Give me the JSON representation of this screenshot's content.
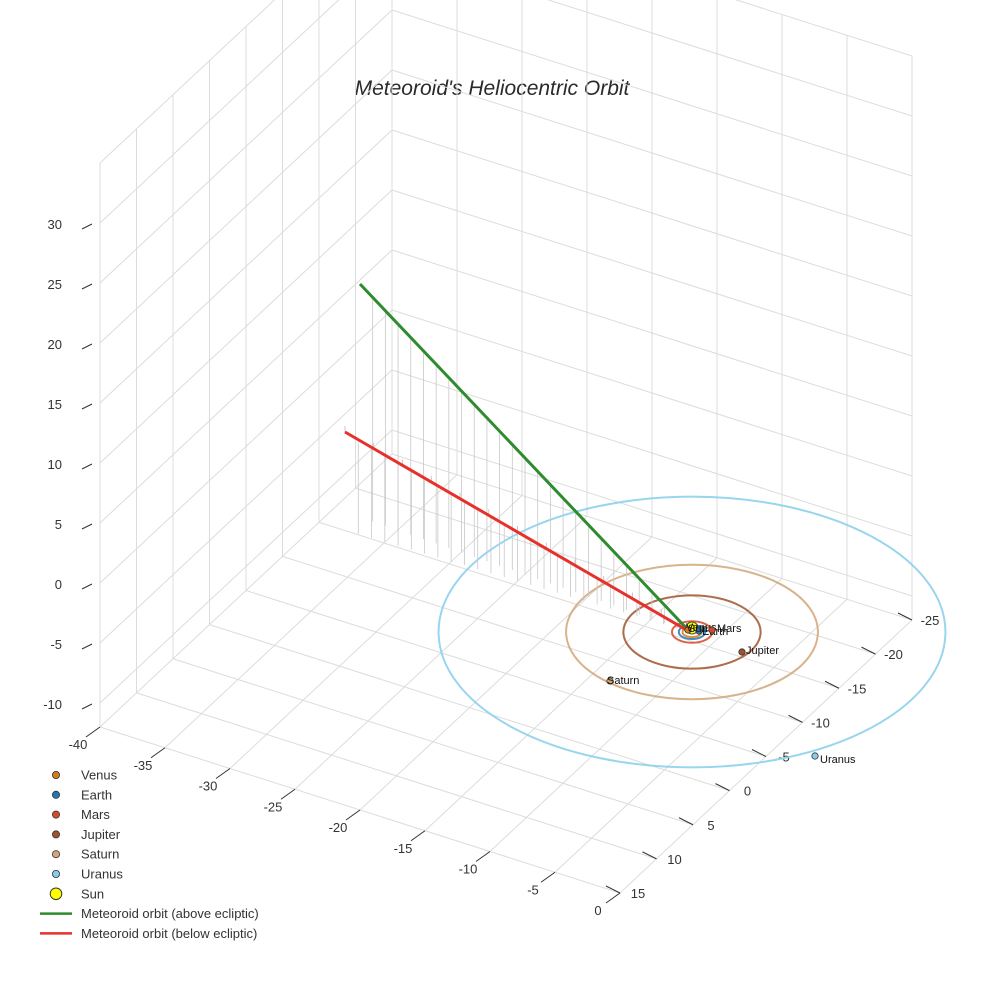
{
  "chart_data": {
    "type": "3d-line",
    "title": "Meteoroid's Heliocentric Orbit",
    "axes": {
      "x": {
        "ticks": [
          -40,
          -35,
          -30,
          -25,
          -20,
          -15,
          -10,
          -5,
          0
        ]
      },
      "y": {
        "ticks": [
          -25,
          -20,
          -15,
          -10,
          -5,
          0,
          5,
          10,
          15
        ]
      },
      "z": {
        "ticks": [
          30,
          25,
          20,
          15,
          10,
          5,
          0,
          -5,
          -10
        ]
      }
    },
    "planets": [
      {
        "name": "Venus",
        "label": "Venus",
        "color": "#d67a1f",
        "orbit_radius": 0.72
      },
      {
        "name": "Earth",
        "label": "Earth",
        "color": "#1f77b4",
        "orbit_radius": 1.0
      },
      {
        "name": "Mars",
        "label": "Mars",
        "color": "#d44a2a",
        "orbit_radius": 1.52
      },
      {
        "name": "Jupiter",
        "label": "Jupiter",
        "color": "#a0522d",
        "orbit_radius": 5.2
      },
      {
        "name": "Saturn",
        "label": "Saturn",
        "color": "#d2a679",
        "orbit_radius": 9.54
      },
      {
        "name": "Uranus",
        "label": "Uranus",
        "color": "#87ceeb",
        "orbit_radius": 19.2
      }
    ],
    "sun": {
      "label": "Sun",
      "color": "#ffff00"
    },
    "series": [
      {
        "name": "Meteoroid orbit (above ecliptic)",
        "color": "#2e8b2e",
        "start": [
          -38,
          -12,
          30
        ],
        "end": [
          0,
          0,
          0
        ]
      },
      {
        "name": "Meteoroid orbit (below ecliptic)",
        "color": "#e8302a",
        "start": [
          -40,
          -8,
          18
        ],
        "end": [
          0,
          0,
          0
        ]
      }
    ],
    "legend": {
      "position": "bottom-left",
      "items": [
        {
          "label": "Venus",
          "kind": "marker",
          "color": "#d67a1f"
        },
        {
          "label": "Earth",
          "kind": "marker",
          "color": "#1f77b4"
        },
        {
          "label": "Mars",
          "kind": "marker",
          "color": "#d44a2a"
        },
        {
          "label": "Jupiter",
          "kind": "marker",
          "color": "#a0522d"
        },
        {
          "label": "Saturn",
          "kind": "marker",
          "color": "#d2a679"
        },
        {
          "label": "Uranus",
          "kind": "marker",
          "color": "#87ceeb"
        },
        {
          "label": "Sun",
          "kind": "marker-large",
          "color": "#ffff00"
        },
        {
          "label": "Meteoroid orbit (above ecliptic)",
          "kind": "line",
          "color": "#2e8b2e"
        },
        {
          "label": "Meteoroid orbit (below ecliptic)",
          "kind": "line",
          "color": "#e8302a"
        }
      ]
    }
  }
}
